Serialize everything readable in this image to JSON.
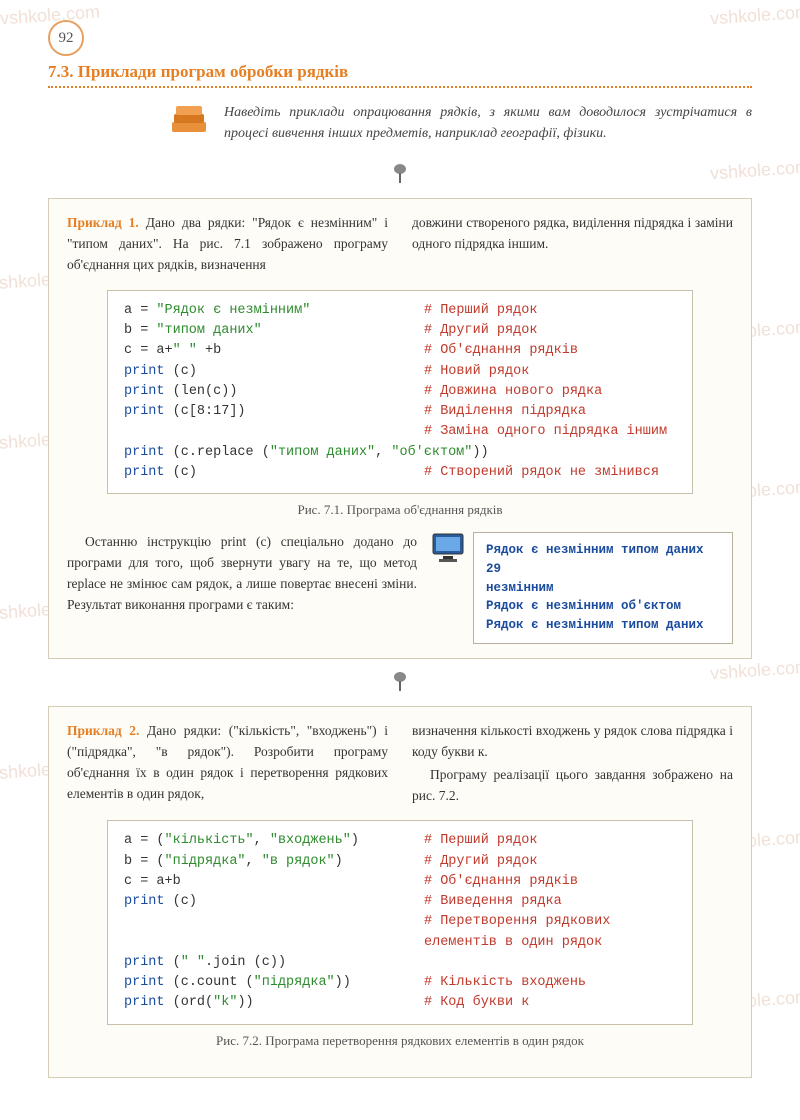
{
  "page_number": "92",
  "section_title": "7.3. Приклади програм обробки рядків",
  "intro": "Наведіть приклади опрацювання рядків, з якими вам доводилося зустрічатися в процесі вивчення інших предметів, наприклад географії, фізики.",
  "colors": {
    "accent": "#e67e22",
    "box_border": "#d5cdb8",
    "box_bg": "#fdfcf7",
    "code_border": "#c8c0a8",
    "keyword": "#1a4b9e",
    "string": "#2e8b2e",
    "comment": "#c0392b",
    "output_text": "#1a4b9e"
  },
  "ex1": {
    "label": "Приклад 1.",
    "para_left": "Дано два рядки: \"Рядок є незмін­ним\" і \"типом даних\". На рис. 7.1 зображено програму об'єднання цих рядків, визначення",
    "para_right": "довжини створеного рядка, виділення підряд­ка і заміни одного підрядка іншим.",
    "fig_ref": "рис. 7.1",
    "code": [
      {
        "l": "a = ",
        "s": "\"Рядок є незмінним\"",
        "c": "# Перший рядок"
      },
      {
        "l": "b = ",
        "s": "\"типом даних\"",
        "c": "# Другий рядок"
      },
      {
        "l": "c = a+",
        "s": "\" \"",
        "l2": " +b",
        "c": "# Об'єднання рядків"
      },
      {
        "k": "print",
        "l": " (c)",
        "c": "# Новий рядок"
      },
      {
        "k": "print",
        "l": " (len(c))",
        "c": "# Довжина нового рядка"
      },
      {
        "k": "print",
        "l": " (c[8:17])",
        "c": "# Виділення підрядка"
      },
      {
        "l": "",
        "c": "# Заміна одного підрядка іншим"
      },
      {
        "k": "print",
        "l": " (c.replace (",
        "s": "\"типом даних\"",
        "l2": ", ",
        "s2": "\"об'єктом\"",
        "l3": "))"
      },
      {
        "k": "print",
        "l": " (c)",
        "c": "# Створений рядок не змінився"
      }
    ],
    "caption": "Рис. 7.1. Програма об'єднання рядків",
    "result_para": "Останню інструкцію print (c) спеціально додано до програми для того, щоб звернути увагу на те, що метод replace не змінює сам рядок, а лише повертає внесені зміни. Ре­зультат виконання програми є таким:",
    "output": [
      "Рядок є незмінним типом даних",
      "29",
      "незмінним",
      "Рядок є незмінним об'єктом",
      "Рядок є незмінним типом даних"
    ]
  },
  "ex2": {
    "label": "Приклад 2.",
    "para_left": "Дано рядки: (\"кількість\", \"вхо­джень\") і (\"підрядка\", \"в рядок\"). Розробити програму об'єднання їх в один рядок і пере­творення рядкових елементів в один рядок,",
    "para_right_1": "визначення кількості входжень у рядок слова підрядка і коду букви к.",
    "para_right_2": "Програму реалізації цього завдання зобра­жено на рис. 7.2.",
    "fig_ref": "рис. 7.2",
    "code": [
      {
        "l": "a = (",
        "s": "\"кількість\"",
        "l2": ", ",
        "s2": "\"входжень\"",
        "l3": ")",
        "c": "# Перший рядок"
      },
      {
        "l": "b = (",
        "s": "\"підрядка\"",
        "l2": ", ",
        "s2": "\"в рядок\"",
        "l3": ")",
        "c": "# Другий рядок"
      },
      {
        "l": "c = a+b",
        "c": "# Об'єднання рядків"
      },
      {
        "k": "print",
        "l": " (c)",
        "c": "# Виведення рядка"
      },
      {
        "l": "",
        "c": "# Перетворення рядкових"
      },
      {
        "l": "",
        "c": "  елементів в один рядок"
      },
      {
        "k": "print",
        "l": " (",
        "s": "\" \"",
        "l2": ".join (c))"
      },
      {
        "k": "print",
        "l": " (c.count (",
        "s": "\"підрядка\"",
        "l2": "))",
        "c": "# Кількість входжень"
      },
      {
        "k": "print",
        "l": " (ord(",
        "s": "\"k\"",
        "l2": "))",
        "c": "# Код букви к"
      }
    ],
    "caption": "Рис. 7.2. Програма перетворення рядкових елементів в один рядок"
  },
  "watermarks": [
    "vshkole.com",
    "vshkole.com",
    "vshkole.com",
    "vshkole.com",
    "vshkole.com",
    "vshkole.com",
    "vshkole.com",
    "vshkole.com",
    "vshkole.com",
    "vshkole.com",
    "vshkole.com",
    "vshkole.com"
  ]
}
